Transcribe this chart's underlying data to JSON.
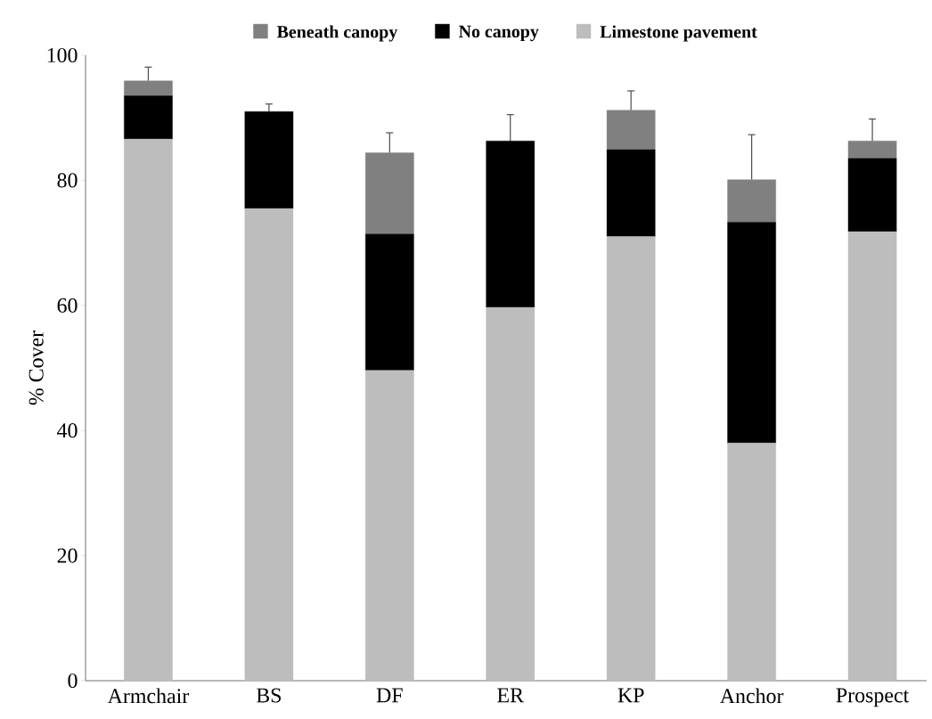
{
  "chart_data": {
    "type": "bar",
    "stacked": true,
    "ylabel": "% Cover",
    "categories": [
      "Armchair",
      "BS",
      "DF",
      "ER",
      "KP",
      "Anchor",
      "Prospect"
    ],
    "series": [
      {
        "name": "Limestone pavement",
        "color": "#bdbdbd",
        "values": [
          86.6,
          75.5,
          49.6,
          59.7,
          71.0,
          38.0,
          71.8
        ]
      },
      {
        "name": "No canopy",
        "color": "#000000",
        "values": [
          6.9,
          15.5,
          21.8,
          26.6,
          13.9,
          35.3,
          11.7
        ],
        "errors": [
          null,
          1.2,
          null,
          4.2,
          null,
          null,
          null
        ]
      },
      {
        "name": "Beneath canopy",
        "color": "#808080",
        "values": [
          2.4,
          0,
          13.0,
          0,
          6.3,
          6.8,
          2.8
        ],
        "errors": [
          2.2,
          null,
          3.2,
          null,
          3.1,
          7.2,
          3.5
        ]
      }
    ],
    "ylim": [
      0,
      100
    ],
    "yticks": [
      0,
      20,
      40,
      60,
      80,
      100
    ],
    "grid": false,
    "legend": "top"
  }
}
